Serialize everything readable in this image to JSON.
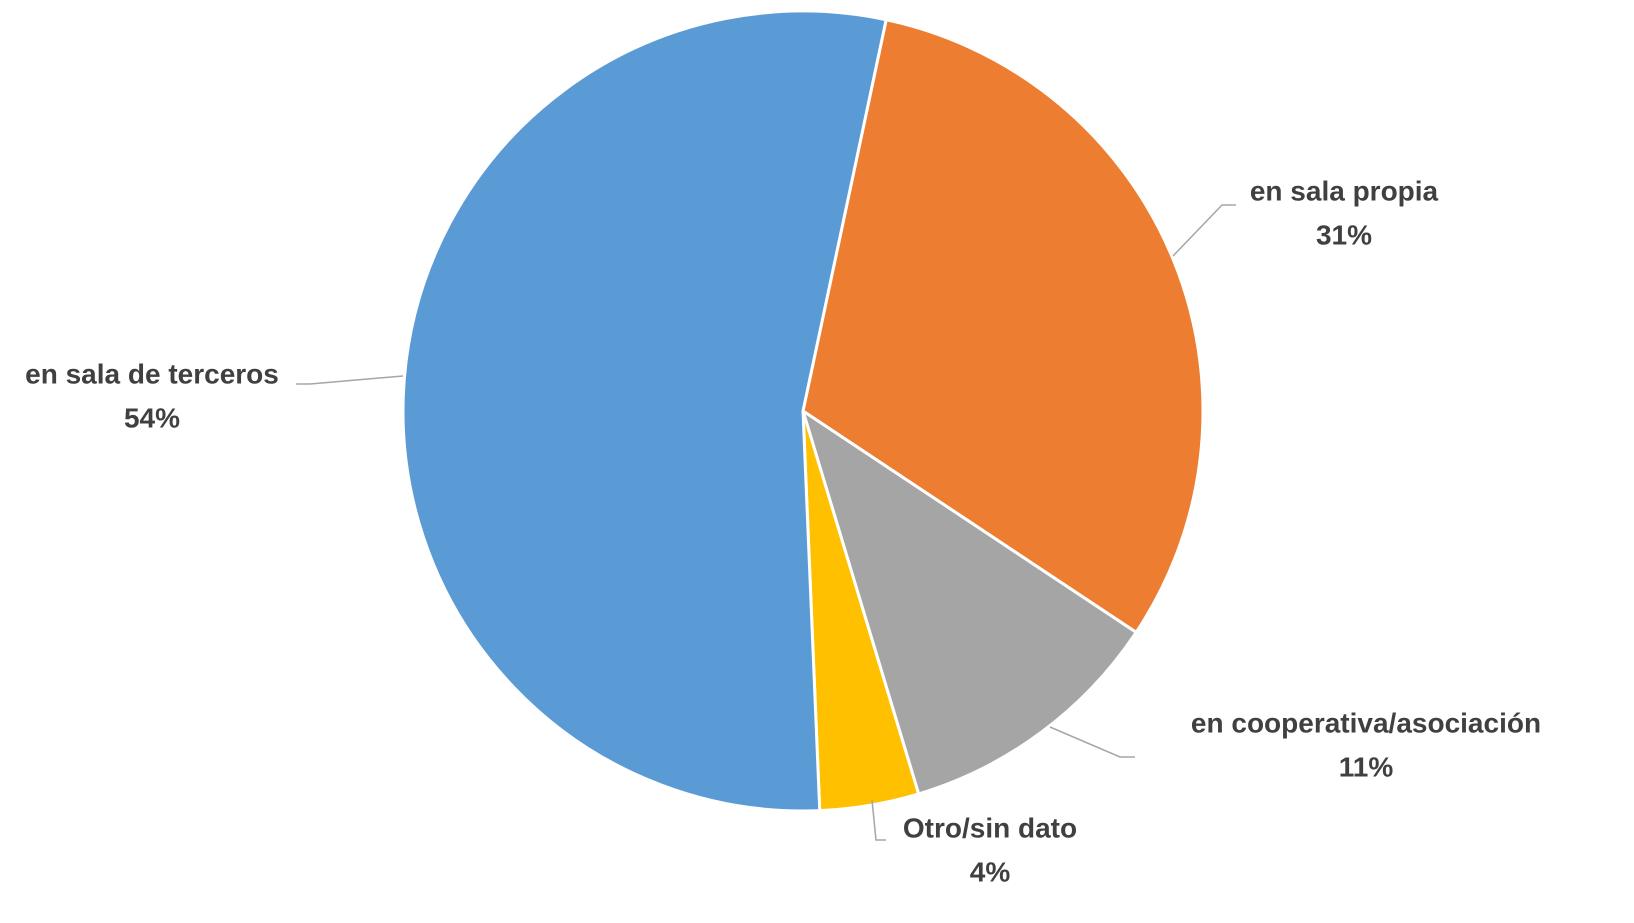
{
  "chart_data": {
    "type": "pie",
    "categories": [
      "en sala propia",
      "en cooperativa/asociación",
      "Otro/sin dato",
      "en sala de terceros"
    ],
    "values": [
      31,
      11,
      4,
      54
    ],
    "value_labels": [
      "31%",
      "11%",
      "4%",
      "54%"
    ],
    "colors": [
      "#ed7d31",
      "#a5a5a5",
      "#ffc000",
      "#5b9bd5"
    ]
  }
}
